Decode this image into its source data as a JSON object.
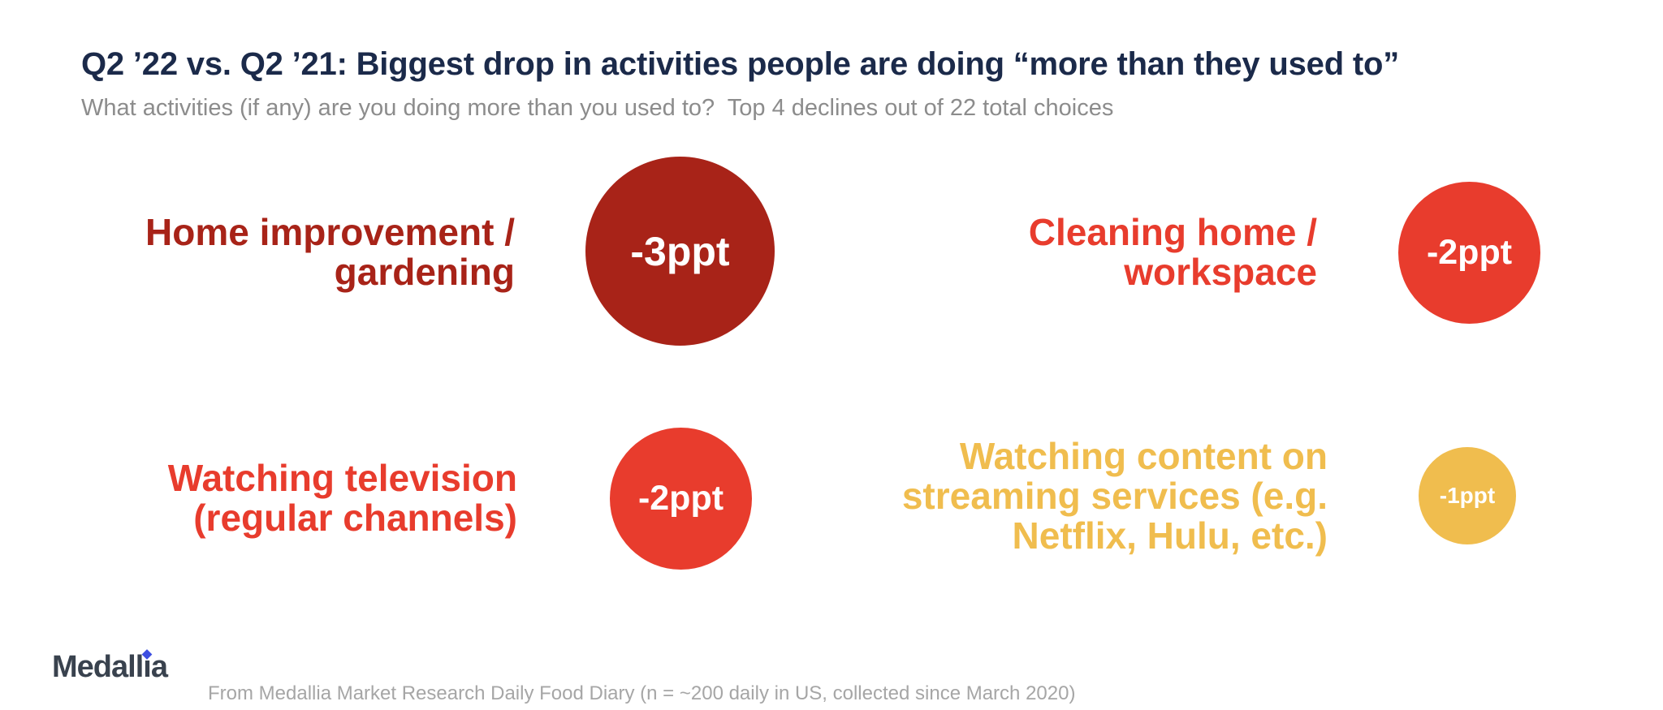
{
  "header": {
    "title": "Q2 ’22 vs. Q2 ’21: Biggest drop in activities people are doing “more than they used to”",
    "subtitle": "What activities (if any) are you doing more than you used to?  Top 4 declines out of 22 total choices"
  },
  "items": [
    {
      "label": "Home improvement / gardening",
      "label_lines": [
        "Home improvement /",
        "gardening"
      ],
      "value_label": "-3ppt",
      "value_ppt": -3,
      "color": "#A82318"
    },
    {
      "label": "Cleaning home / workspace",
      "label_lines": [
        "Cleaning home /",
        "workspace"
      ],
      "value_label": "-2ppt",
      "value_ppt": -2,
      "color": "#E83C2D"
    },
    {
      "label": "Watching television (regular channels)",
      "label_lines": [
        "Watching television",
        "(regular channels)"
      ],
      "value_label": "-2ppt",
      "value_ppt": -2,
      "color": "#E83C2D"
    },
    {
      "label": "Watching content on streaming services (e.g. Netflix, Hulu, etc.)",
      "label_lines": [
        "Watching content on",
        "streaming services (e.g.",
        "Netflix, Hulu, etc.)"
      ],
      "value_label": "-1ppt",
      "value_ppt": -1,
      "color": "#F0BD4E"
    }
  ],
  "footer": {
    "logo": {
      "text": "Medallia",
      "part1": "Medall",
      "part2": "i",
      "part3": "a"
    },
    "source": "From Medallia Market Research Daily Food Diary (n = ~200 daily in US, collected since March 2020)"
  },
  "colors": {
    "title_navy": "#1B2A4A",
    "subtitle_gray": "#8C8C8C",
    "dark_red": "#A82318",
    "bright_red": "#E83C2D",
    "gold": "#F0BD4E",
    "bubble_text": "#FFFFFF",
    "footer_gray": "#A6A6A6",
    "logo_dark": "#39424E",
    "logo_dot_blue": "#3E4FE1",
    "background": "#FFFFFF"
  },
  "chart_data": {
    "type": "bar",
    "variant": "proportional-bubble-infographic",
    "title": "Q2 ’22 vs. Q2 ’21: Biggest drop in activities people are doing “more than they used to”",
    "subtitle": "What activities (if any) are you doing more than you used to?  Top 4 declines out of 22 total choices",
    "categories": [
      "Home improvement / gardening",
      "Cleaning home / workspace",
      "Watching television (regular channels)",
      "Watching content on streaming services (e.g. Netflix, Hulu, etc.)"
    ],
    "values": [
      -3,
      -2,
      -2,
      -1
    ],
    "unit": "ppt",
    "value_labels": [
      "-3ppt",
      "-2ppt",
      "-2ppt",
      "-1ppt"
    ],
    "colors": [
      "#A82318",
      "#E83C2D",
      "#E83C2D",
      "#F0BD4E"
    ],
    "legend": "off",
    "grid": "off",
    "source": "From Medallia Market Research Daily Food Diary (n = ~200 daily in US, collected since March 2020)"
  }
}
